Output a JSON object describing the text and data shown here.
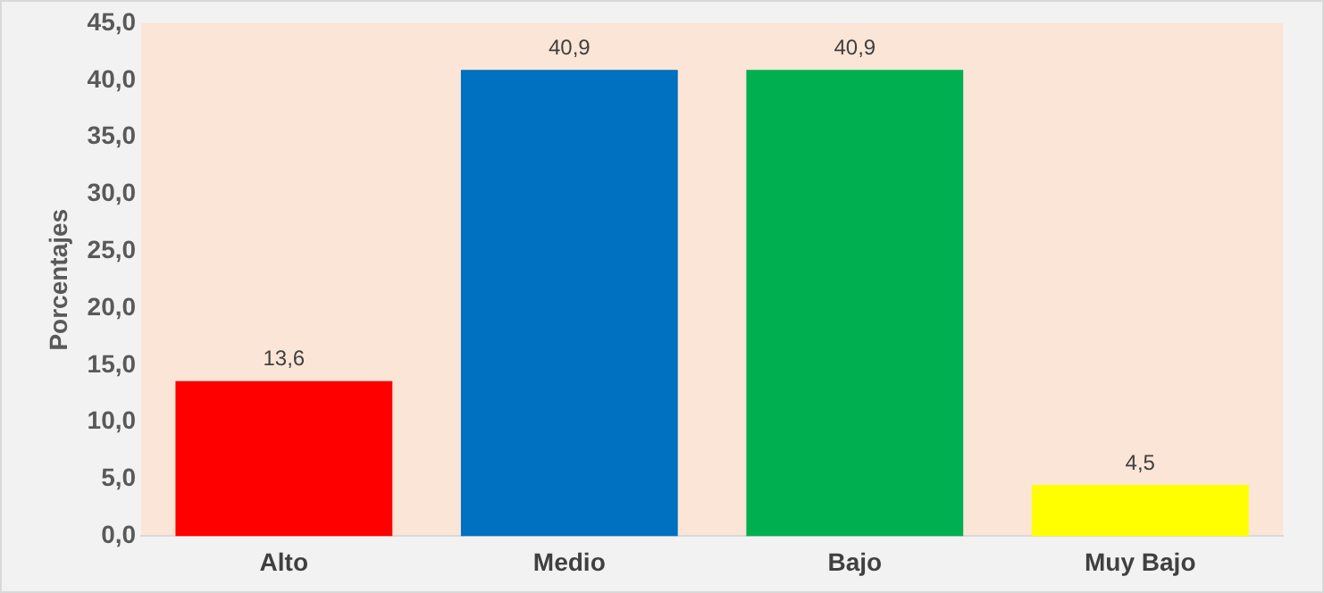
{
  "chart_data": {
    "type": "bar",
    "ylabel": "Porcentajes",
    "categories": [
      "Alto",
      "Medio",
      "Bajo",
      "Muy Bajo"
    ],
    "values": [
      13.6,
      40.9,
      40.9,
      4.5
    ],
    "colors": [
      "#ff0000",
      "#0070c0",
      "#00b050",
      "#ffff00"
    ],
    "value_labels": [
      "13,6",
      "40,9",
      "40,9",
      "4,5"
    ],
    "ylim": [
      0,
      45
    ],
    "yticks": [
      {
        "value": 0,
        "label": "0,0"
      },
      {
        "value": 5,
        "label": "5,0"
      },
      {
        "value": 10,
        "label": "10,0"
      },
      {
        "value": 15,
        "label": "15,0"
      },
      {
        "value": 20,
        "label": "20,0"
      },
      {
        "value": 25,
        "label": "25,0"
      },
      {
        "value": 30,
        "label": "30,0"
      },
      {
        "value": 35,
        "label": "35,0"
      },
      {
        "value": 40,
        "label": "40,0"
      },
      {
        "value": 45,
        "label": "45,0"
      }
    ],
    "grid": false,
    "legend": false
  }
}
